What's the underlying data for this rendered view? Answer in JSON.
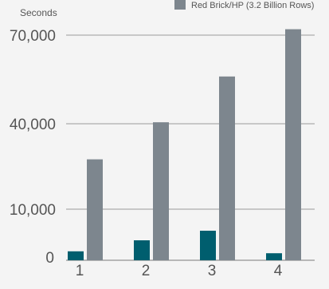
{
  "chart_data": {
    "type": "bar",
    "ylabel": "Seconds",
    "categories": [
      "1",
      "2",
      "3",
      "4"
    ],
    "series": [
      {
        "name": "",
        "color": "#005e6e",
        "values": [
          1200,
          3500,
          5500,
          800
        ]
      },
      {
        "name": "Red Brick/HP (3.2 Billion Rows)",
        "color": "#7d868e",
        "values": [
          27500,
          40500,
          56000,
          72000
        ]
      }
    ],
    "yticks": [
      {
        "value": 0,
        "label": "0"
      },
      {
        "value": 10000,
        "label": "10,000"
      },
      {
        "value": 40000,
        "label": "40,000"
      },
      {
        "value": 70000,
        "label": "70,000"
      }
    ],
    "scale": "piecewise-linear",
    "ylim": [
      0,
      70000
    ],
    "grid": true,
    "legend": "top-right"
  }
}
